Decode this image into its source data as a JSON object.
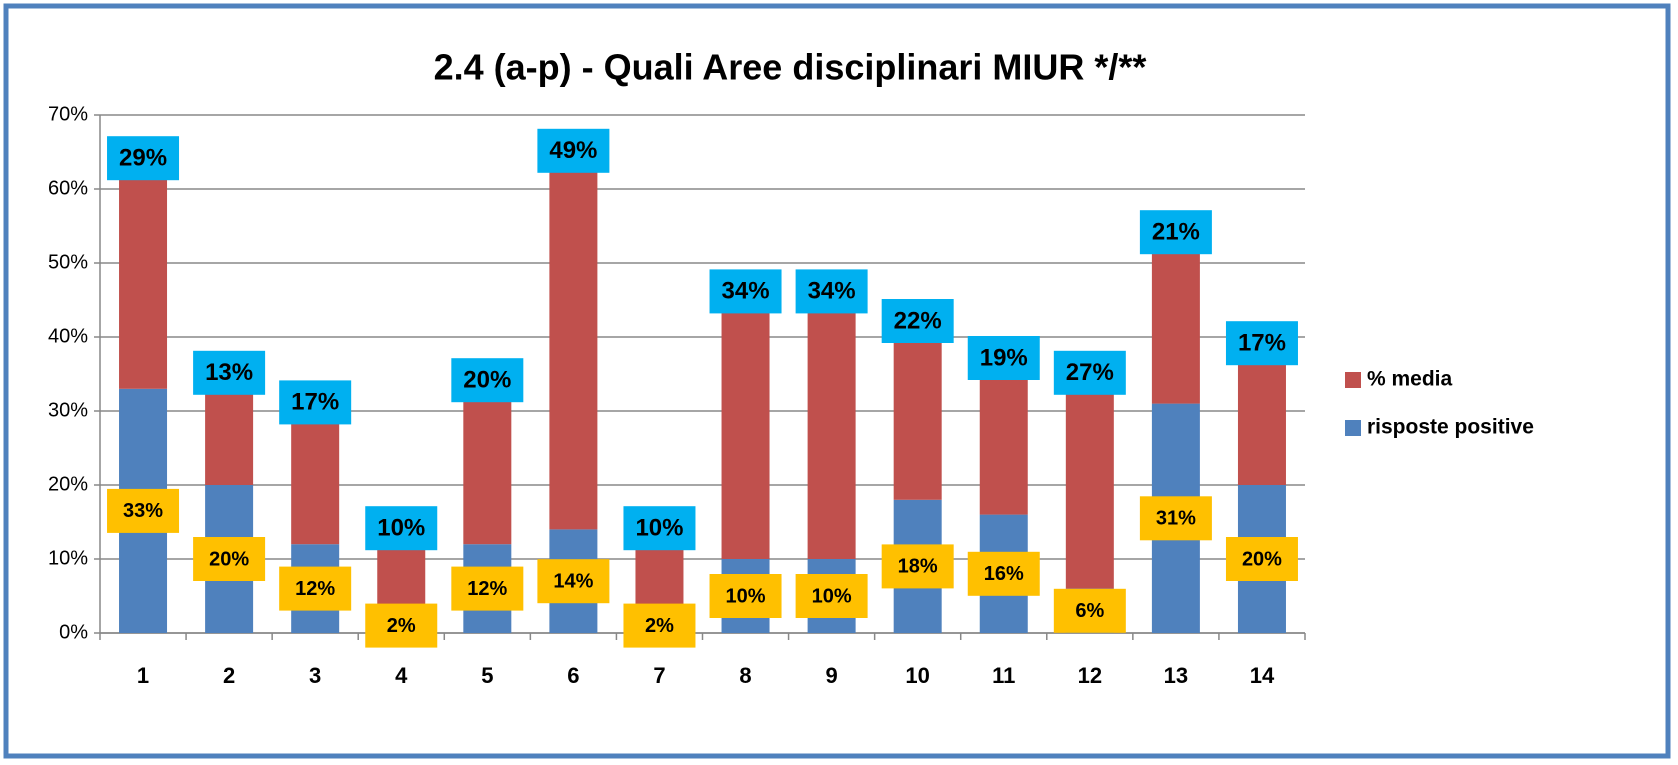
{
  "chart_data": {
    "type": "stacked_bar",
    "title": "2.4 (a-p) - Quali Aree disciplinari MIUR */**",
    "categories": [
      "1",
      "2",
      "3",
      "4",
      "5",
      "6",
      "7",
      "8",
      "9",
      "10",
      "11",
      "12",
      "13",
      "14"
    ],
    "series": [
      {
        "name": "risposte positive",
        "color": "#4f81bd",
        "label_color": "#ffc000",
        "values": [
          33,
          20,
          12,
          2,
          12,
          14,
          2,
          10,
          10,
          18,
          16,
          6,
          31,
          20
        ],
        "value_labels": [
          "33%",
          "20%",
          "12%",
          "2%",
          "12%",
          "14%",
          "2%",
          "10%",
          "10%",
          "18%",
          "16%",
          "6%",
          "31%",
          "20%"
        ]
      },
      {
        "name": "% media",
        "color": "#c0504d",
        "label_color": "#00b0f0",
        "values": [
          29,
          13,
          17,
          10,
          20,
          49,
          10,
          34,
          34,
          22,
          19,
          27,
          21,
          17
        ],
        "value_labels": [
          "29%",
          "13%",
          "17%",
          "10%",
          "20%",
          "49%",
          "10%",
          "34%",
          "34%",
          "22%",
          "19%",
          "27%",
          "21%",
          "17%"
        ]
      }
    ],
    "ylim": [
      0,
      70
    ],
    "yticks": [
      {
        "value": 0,
        "label": "0%"
      },
      {
        "value": 10,
        "label": "10%"
      },
      {
        "value": 20,
        "label": "20%"
      },
      {
        "value": 30,
        "label": "30%"
      },
      {
        "value": 40,
        "label": "40%"
      },
      {
        "value": 50,
        "label": "50%"
      },
      {
        "value": 60,
        "label": "60%"
      },
      {
        "value": 70,
        "label": "70%"
      }
    ],
    "grid": true
  }
}
